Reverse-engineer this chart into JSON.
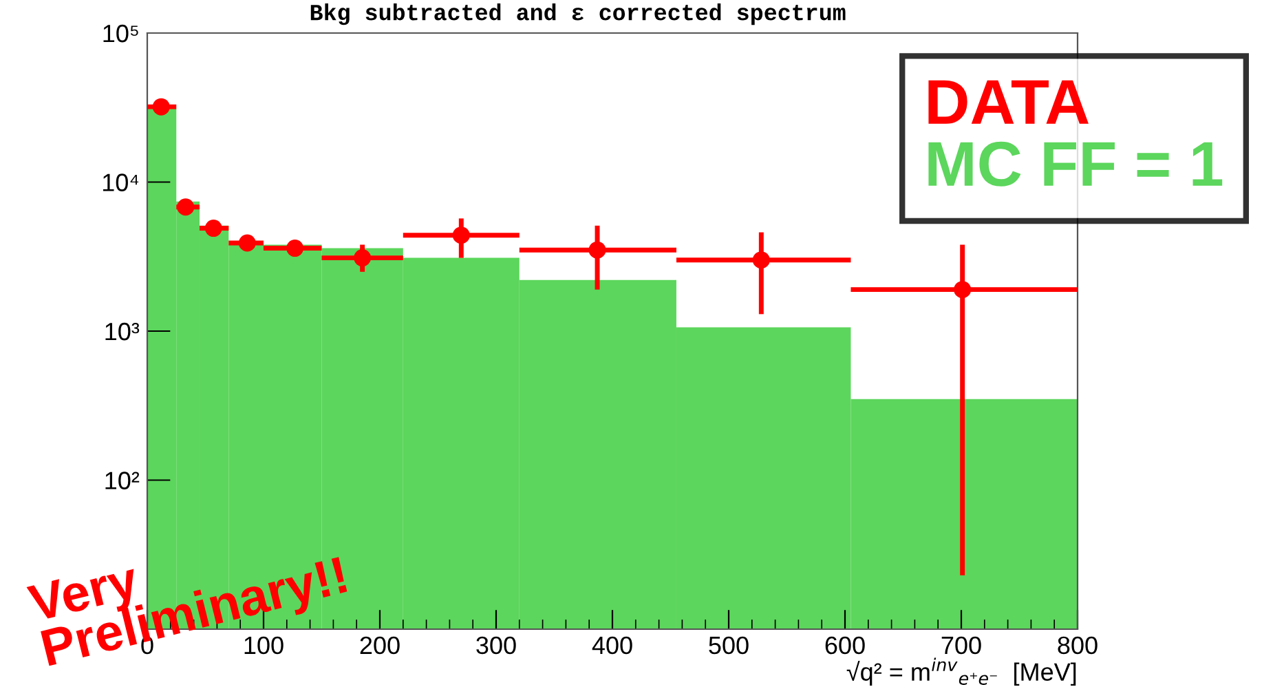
{
  "chart_data": {
    "type": "histogram",
    "title": "Bkg subtracted and ε corrected spectrum",
    "xlabel": "√q² = m$^{inv}$$_{e⁺e⁻}$  [MeV]",
    "bins": [
      0,
      25,
      45,
      70,
      100,
      150,
      220,
      320,
      455,
      605,
      800
    ],
    "series": [
      {
        "type": "histogram",
        "name": "MC FF = 1",
        "color": "#5cd65c",
        "values": [
          31000,
          7400,
          5100,
          3800,
          3800,
          3600,
          3100,
          2200,
          1060,
          350
        ]
      },
      {
        "type": "scatter",
        "name": "DATA",
        "color": "#ff0000",
        "marker": "circle",
        "x": [
          12,
          33,
          57,
          86,
          127,
          185,
          270,
          387,
          528,
          701
        ],
        "values": [
          32000,
          6800,
          4900,
          3900,
          3600,
          3100,
          4400,
          3500,
          3000,
          1900
        ],
        "errors": [
          null,
          null,
          null,
          null,
          null,
          [
            2500,
            3800
          ],
          [
            3100,
            5700
          ],
          [
            1900,
            5100
          ],
          [
            1300,
            4600
          ],
          [
            23,
            3800
          ]
        ],
        "xerrors": [
          [
            0,
            25
          ],
          [
            25,
            45
          ],
          [
            45,
            70
          ],
          [
            70,
            100
          ],
          [
            100,
            150
          ],
          [
            150,
            220
          ],
          [
            220,
            320
          ],
          [
            320,
            455
          ],
          [
            455,
            605
          ],
          [
            605,
            800
          ]
        ]
      }
    ],
    "log": "y",
    "xlim": [
      0,
      800
    ],
    "ylim": [
      10,
      100000
    ],
    "xticks": [
      0,
      100,
      200,
      300,
      400,
      500,
      600,
      700,
      800
    ],
    "yticks": [
      {
        "value": 100,
        "label": "10²"
      },
      {
        "value": 1000,
        "label": "10³"
      },
      {
        "value": 10000,
        "label": "10⁴"
      },
      {
        "value": 100000,
        "label": "10⁵"
      }
    ],
    "grid": false,
    "legend": "top right",
    "annotations": [
      "Very\nPreliminary!!"
    ]
  }
}
